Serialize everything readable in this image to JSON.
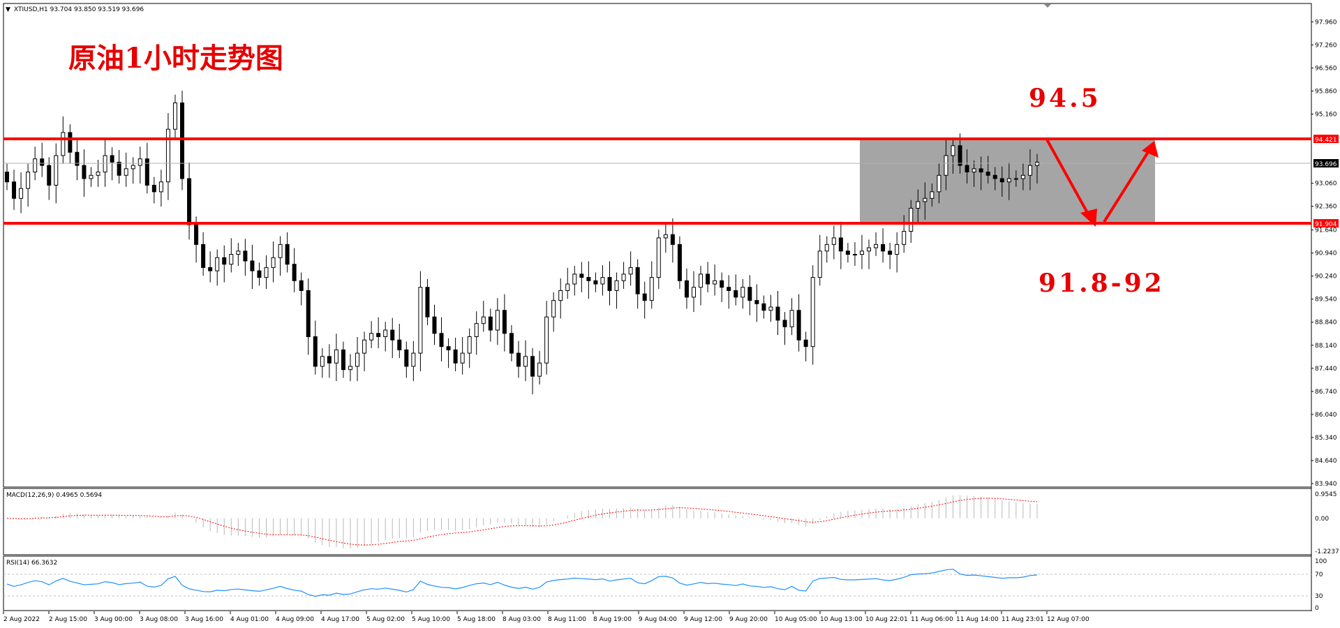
{
  "symbol_header": "XTIUSD,H1  93.704 93.850 93.519 93.696",
  "annotations": {
    "title_cn": "原油1小时走势图",
    "upper_target": "94.5",
    "lower_range": "91.8-92"
  },
  "price_axis": {
    "ticks": [
      "97.960",
      "97.260",
      "96.560",
      "95.860",
      "95.160",
      "94.421",
      "93.696",
      "93.060",
      "92.360",
      "91.904",
      "91.640",
      "90.940",
      "90.240",
      "89.540",
      "88.840",
      "88.140",
      "87.440",
      "86.740",
      "86.040",
      "85.340",
      "84.640",
      "83.940"
    ],
    "current_price": "93.696",
    "resistance_price": "94.421",
    "support_price": "91.904",
    "range": [
      83.94,
      98.2
    ]
  },
  "macd": {
    "label": "MACD(12,26,9) 0.4965 0.5694",
    "ticks": [
      "0.9545",
      "0.00",
      "-1.2237"
    ]
  },
  "rsi": {
    "label": "RSI(14) 66.3632",
    "ticks": [
      "100",
      "70",
      "30",
      "0"
    ]
  },
  "time_axis": {
    "labels": [
      "2 Aug 2022",
      "2 Aug 15:00",
      "3 Aug 00:00",
      "3 Aug 08:00",
      "3 Aug 16:00",
      "4 Aug 01:00",
      "4 Aug 09:00",
      "4 Aug 17:00",
      "5 Aug 02:00",
      "5 Aug 10:00",
      "5 Aug 18:00",
      "8 Aug 03:00",
      "8 Aug 11:00",
      "8 Aug 19:00",
      "9 Aug 04:00",
      "9 Aug 12:00",
      "9 Aug 20:00",
      "10 Aug 05:00",
      "10 Aug 13:00",
      "10 Aug 22:01",
      "11 Aug 06:00",
      "11 Aug 14:00",
      "11 Aug 23:01",
      "12 Aug 07:00"
    ]
  },
  "colors": {
    "resistance_line": "#ff0000",
    "support_line": "#ff0000",
    "arrow": "#ff0000",
    "box_fill": "#a0a0a0",
    "macd_signal": "#ff0000",
    "rsi_line": "#1e90ff",
    "price_tag_red": "#ff0000",
    "price_tag_current": "#000000"
  },
  "chart_data": {
    "type": "candlestick",
    "symbol": "XTIUSD",
    "timeframe": "H1",
    "ohlc_header": {
      "open": 93.704,
      "high": 93.85,
      "low": 93.519,
      "close": 93.696
    },
    "closes": [
      93.1,
      92.6,
      92.9,
      93.4,
      93.8,
      93.6,
      93.0,
      93.9,
      94.6,
      94.0,
      93.6,
      93.2,
      93.3,
      93.4,
      93.9,
      93.7,
      93.3,
      93.5,
      93.6,
      93.8,
      93.0,
      92.8,
      93.1,
      94.7,
      95.5,
      93.2,
      91.8,
      91.2,
      90.5,
      90.4,
      90.8,
      90.6,
      90.9,
      91.0,
      90.7,
      90.4,
      90.2,
      90.5,
      90.8,
      91.2,
      90.6,
      90.1,
      89.8,
      88.4,
      87.5,
      87.8,
      87.6,
      88.0,
      87.4,
      87.5,
      87.9,
      88.3,
      88.5,
      88.4,
      88.6,
      88.3,
      88.0,
      87.5,
      87.9,
      89.9,
      89.0,
      88.5,
      88.1,
      88.0,
      87.6,
      87.9,
      88.4,
      88.8,
      89.0,
      88.6,
      89.2,
      88.5,
      87.9,
      87.5,
      87.8,
      87.2,
      87.6,
      89.0,
      89.5,
      89.8,
      90.0,
      90.3,
      90.2,
      90.1,
      90.0,
      90.2,
      89.8,
      90.1,
      90.3,
      90.5,
      89.7,
      89.5,
      90.2,
      91.4,
      91.5,
      91.2,
      90.1,
      89.6,
      89.9,
      90.3,
      90.0,
      90.1,
      89.9,
      89.8,
      89.6,
      89.9,
      89.5,
      89.4,
      89.2,
      89.3,
      88.9,
      88.7,
      89.2,
      88.3,
      88.1,
      90.2,
      91.0,
      91.2,
      91.4,
      91.0,
      90.9,
      90.9,
      91.0,
      91.1,
      91.2,
      91.0,
      90.9,
      91.2,
      91.6,
      92.3,
      92.5,
      92.6,
      92.8,
      93.3,
      93.9,
      94.2,
      93.6,
      93.4,
      93.5,
      93.4,
      93.3,
      93.2,
      93.1,
      93.2,
      93.2,
      93.3,
      93.6,
      93.7
    ],
    "support": 91.904,
    "resistance": 94.421,
    "macd": {
      "main": 0.4965,
      "signal": 0.5694,
      "ylim": [
        -1.2237,
        0.9545
      ]
    },
    "rsi": {
      "value": 66.3632,
      "levels": [
        70,
        30
      ],
      "ylim": [
        0,
        100
      ]
    }
  }
}
